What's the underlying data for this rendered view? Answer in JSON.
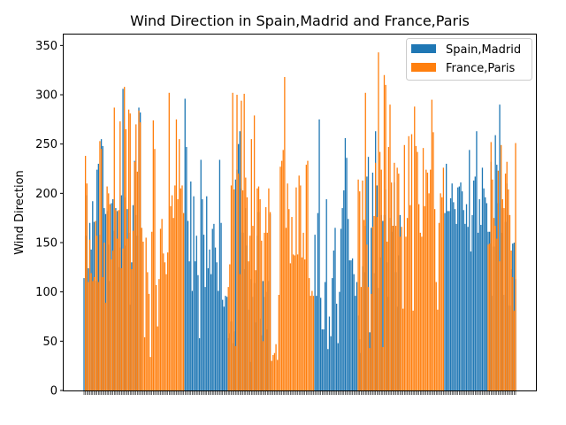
{
  "chart_data": {
    "type": "bar",
    "title": "Wind Direction in Spain,Madrid and France,Paris",
    "xlabel": "",
    "ylabel": "Wind Direction",
    "ylim": [
      0,
      362
    ],
    "yticks": [
      0,
      50,
      100,
      150,
      200,
      250,
      300,
      350
    ],
    "legend_position": "top-right",
    "grid": false,
    "series": [
      {
        "name": "Spain,Madrid",
        "color": "#1f77b4",
        "values": [
          114,
          157,
          198,
          124,
          170,
          143,
          192,
          171,
          111,
          224,
          230,
          158,
          255,
          248,
          185,
          179,
          182,
          148,
          111,
          190,
          194,
          162,
          185,
          182,
          125,
          145,
          198,
          306,
          196,
          147,
          184,
          160,
          87,
          130,
          188,
          233,
          178,
          157,
          287,
          282,
          0,
          0,
          0,
          0,
          0,
          0,
          0,
          0,
          0,
          0,
          0,
          0,
          0,
          0,
          0,
          0,
          0,
          0,
          0,
          0,
          0,
          0,
          0,
          0,
          0,
          0,
          0,
          0,
          0,
          0,
          296,
          247,
          172,
          131,
          212,
          101,
          197,
          131,
          157,
          117,
          53,
          234,
          194,
          158,
          105,
          197,
          124,
          143,
          118,
          164,
          169,
          145,
          130,
          101,
          234,
          170,
          92,
          85,
          96,
          95,
          53,
          58,
          70,
          48,
          60,
          214,
          224,
          250,
          263,
          205,
          160,
          123,
          185,
          147,
          82,
          29,
          113,
          95,
          109,
          69,
          157,
          181,
          73,
          56,
          111,
          95,
          100,
          62,
          111,
          179,
          0,
          0,
          0,
          0,
          0,
          0,
          0,
          0,
          0,
          0,
          0,
          0,
          0,
          0,
          0,
          0,
          0,
          0,
          0,
          0,
          0,
          0,
          0,
          0,
          0,
          0,
          0,
          0,
          0,
          0,
          158,
          96,
          180,
          275,
          94,
          62,
          62,
          110,
          194,
          42,
          75,
          55,
          114,
          142,
          165,
          88,
          48,
          100,
          164,
          185,
          203,
          256,
          236,
          174,
          132,
          132,
          134,
          118,
          96,
          110,
          76,
          52,
          38,
          126,
          120,
          167,
          217,
          237,
          59,
          165,
          221,
          119,
          263,
          208,
          104,
          135,
          178,
          172,
          178,
          204,
          130,
          95,
          175,
          161,
          167,
          211,
          120,
          85,
          137,
          178,
          0,
          0,
          0,
          0,
          0,
          0,
          0,
          0,
          0,
          0,
          0,
          0,
          0,
          0,
          0,
          0,
          0,
          0,
          0,
          0,
          0,
          0,
          0,
          0,
          0,
          0,
          0,
          0,
          0,
          0,
          180,
          230,
          182,
          182,
          195,
          210,
          191,
          184,
          169,
          206,
          207,
          211,
          202,
          183,
          169,
          189,
          166,
          244,
          141,
          178,
          213,
          217,
          263,
          160,
          194,
          168,
          226,
          205,
          196,
          190,
          161,
          161,
          232,
          96,
          146,
          259,
          229,
          190,
          290,
          160,
          185,
          97,
          171,
          210,
          178,
          86,
          123,
          149,
          150,
          113
        ]
      },
      {
        "name": "France,Paris",
        "color": "#ff7f0e",
        "values": [
          0,
          238,
          210,
          110,
          153,
          119,
          111,
          115,
          172,
          157,
          110,
          253,
          245,
          115,
          150,
          89,
          207,
          200,
          189,
          133,
          142,
          287,
          183,
          154,
          183,
          273,
          124,
          144,
          308,
          265,
          154,
          285,
          281,
          123,
          162,
          232,
          270,
          222,
          284,
          272,
          165,
          151,
          54,
          155,
          120,
          98,
          34,
          161,
          274,
          245,
          107,
          65,
          113,
          164,
          174,
          139,
          130,
          118,
          140,
          302,
          187,
          198,
          175,
          208,
          275,
          194,
          255,
          205,
          208,
          180,
          0,
          0,
          0,
          0,
          0,
          0,
          0,
          0,
          0,
          0,
          0,
          0,
          0,
          0,
          0,
          0,
          0,
          0,
          0,
          0,
          0,
          0,
          0,
          0,
          0,
          0,
          0,
          0,
          0,
          0,
          105,
          128,
          208,
          302,
          204,
          45,
          300,
          220,
          118,
          294,
          203,
          301,
          216,
          196,
          131,
          157,
          255,
          167,
          279,
          122,
          205,
          207,
          194,
          152,
          50,
          160,
          186,
          160,
          205,
          181,
          30,
          36,
          38,
          47,
          31,
          97,
          227,
          233,
          244,
          318,
          165,
          210,
          184,
          129,
          176,
          138,
          137,
          206,
          138,
          218,
          208,
          135,
          160,
          133,
          229,
          233,
          114,
          96,
          101,
          96,
          0,
          0,
          0,
          0,
          0,
          0,
          0,
          0,
          0,
          0,
          0,
          0,
          0,
          0,
          0,
          0,
          0,
          0,
          0,
          0,
          0,
          0,
          0,
          0,
          0,
          0,
          0,
          0,
          0,
          0,
          214,
          202,
          105,
          213,
          173,
          302,
          148,
          105,
          43,
          98,
          166,
          177,
          231,
          176,
          343,
          242,
          224,
          44,
          320,
          310,
          151,
          247,
          290,
          211,
          167,
          231,
          167,
          226,
          220,
          156,
          166,
          83,
          249,
          156,
          175,
          258,
          188,
          260,
          81,
          288,
          248,
          242,
          189,
          160,
          156,
          246,
          187,
          224,
          221,
          200,
          224,
          295,
          262,
          184,
          110,
          82,
          170,
          200,
          196,
          226,
          0,
          0,
          0,
          0,
          0,
          0,
          0,
          0,
          0,
          0,
          0,
          0,
          0,
          0,
          0,
          0,
          0,
          0,
          0,
          0,
          0,
          0,
          0,
          0,
          0,
          0,
          0,
          0,
          0,
          0,
          148,
          149,
          252,
          214,
          175,
          167,
          154,
          223,
          131,
          249,
          194,
          185,
          220,
          232,
          204,
          178,
          142,
          115,
          81,
          251
        ]
      }
    ]
  }
}
